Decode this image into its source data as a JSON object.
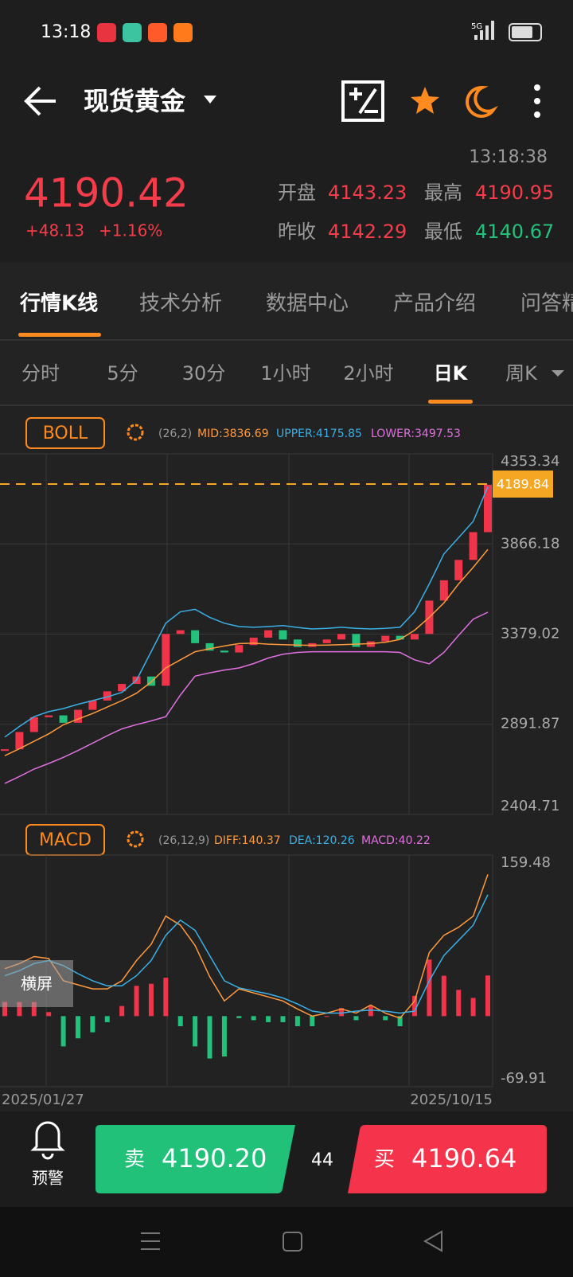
{
  "status": {
    "time": "13:18",
    "network": "5G"
  },
  "header": {
    "title": "现货黄金",
    "time": "13:18:38",
    "price": "4190.42",
    "change": "+48.13",
    "change_pct": "+1.16%",
    "stats": [
      {
        "label": "开盘",
        "value": "4143.23"
      },
      {
        "label": "最高",
        "value": "4190.95"
      },
      {
        "label": "昨收",
        "value": "4142.29"
      },
      {
        "label": "最低",
        "value": "4140.67"
      }
    ]
  },
  "tabs": [
    "行情K线",
    "技术分析",
    "数据中心",
    "产品介绍",
    "问答精华"
  ],
  "periods": [
    "分时",
    "5分",
    "30分",
    "1小时",
    "2小时",
    "日K",
    "周K"
  ],
  "chart_data": [
    {
      "type": "candlestick",
      "indicator": "BOLL",
      "params": "(26,2)",
      "legend": [
        "MID:3836.69",
        "UPPER:4175.85",
        "LOWER:3497.53"
      ],
      "ylim": [
        2404.71,
        4353.34
      ],
      "yticks": [
        4353.34,
        3866.18,
        3379.02,
        2891.87,
        2404.71
      ],
      "marker": 4189.84,
      "marker_color": "#f5a623",
      "up_color": "#f0354b",
      "down_color": "#22c17c",
      "close": {
        "values": [
          2757,
          2850,
          2930,
          2940,
          2900,
          2970,
          3020,
          3070,
          3110,
          3150,
          3100,
          3380,
          3400,
          3330,
          3290,
          3280,
          3320,
          3360,
          3400,
          3350,
          3310,
          3330,
          3350,
          3380,
          3310,
          3340,
          3370,
          3350,
          3380,
          3560,
          3670,
          3780,
          3930,
          4186
        ]
      },
      "series": [
        {
          "color": "#ff9a3c",
          "values": [
            2722,
            2760,
            2800,
            2840,
            2889,
            2920,
            2950,
            2985,
            3020,
            3060,
            3120,
            3196,
            3240,
            3284,
            3300,
            3315,
            3328,
            3330,
            3325,
            3322,
            3320,
            3319,
            3320,
            3322,
            3325,
            3328,
            3335,
            3350,
            3400,
            3470,
            3548,
            3650,
            3740,
            3836.69
          ]
        },
        {
          "color": "#3ab0e6",
          "values": [
            2823,
            2880,
            2933,
            2960,
            2977,
            3000,
            3020,
            3040,
            3064,
            3130,
            3284,
            3438,
            3500,
            3513,
            3470,
            3438,
            3420,
            3416,
            3420,
            3425,
            3415,
            3407,
            3410,
            3416,
            3410,
            3407,
            3410,
            3416,
            3500,
            3650,
            3812,
            3900,
            3988,
            4175.85
          ]
        },
        {
          "color": "#e070e0",
          "values": [
            2572,
            2610,
            2650,
            2680,
            2713,
            2750,
            2790,
            2830,
            2867,
            2890,
            2910,
            2933,
            3050,
            3152,
            3170,
            3185,
            3196,
            3220,
            3250,
            3270,
            3280,
            3284,
            3284,
            3284,
            3284,
            3284,
            3284,
            3280,
            3240,
            3218,
            3280,
            3372,
            3460,
            3497.53
          ]
        }
      ]
    },
    {
      "type": "macd",
      "indicator": "MACD",
      "params": "(26,12,9)",
      "legend": [
        "DIFF:140.37",
        "DEA:120.26",
        "MACD:40.22"
      ],
      "ylim": [
        -69.91,
        159.48
      ],
      "yticks": [
        159.48,
        -69.91
      ],
      "up_color": "#f0354b",
      "down_color": "#22c17c",
      "series": [
        {
          "color": "#ff9a3c",
          "values": [
            47,
            52,
            59,
            57,
            35,
            31,
            27,
            27,
            35,
            55,
            71,
            99,
            90,
            70,
            39,
            15,
            27,
            23,
            19,
            15,
            7,
            0,
            3,
            7,
            3,
            11,
            3,
            -2,
            15,
            63,
            80,
            88,
            99,
            140.37
          ]
        },
        {
          "color": "#3ab0e6",
          "values": [
            40,
            45,
            52,
            55,
            50,
            42,
            35,
            30,
            30,
            40,
            55,
            80,
            95,
            85,
            60,
            35,
            28,
            25,
            22,
            18,
            12,
            5,
            3,
            3,
            5,
            6,
            5,
            3,
            5,
            35,
            60,
            75,
            90,
            120.26
          ]
        }
      ],
      "histogram": {
        "values": [
          14,
          14,
          14,
          4,
          -30,
          -22,
          -16,
          -6,
          10,
          30,
          32,
          38,
          -10,
          -30,
          -42,
          -40,
          -2,
          -4,
          -6,
          -6,
          -10,
          -10,
          0,
          8,
          -4,
          10,
          -4,
          -10,
          20,
          56,
          40,
          26,
          18,
          40.22
        ]
      }
    }
  ],
  "dates": [
    "2025/01/27",
    "2025/10/15"
  ],
  "landscape": "横屏",
  "footer": {
    "alert": "预警",
    "sell_label": "卖",
    "sell_price": "4190.20",
    "spread": "44",
    "buy_label": "买",
    "buy_price": "4190.64"
  }
}
